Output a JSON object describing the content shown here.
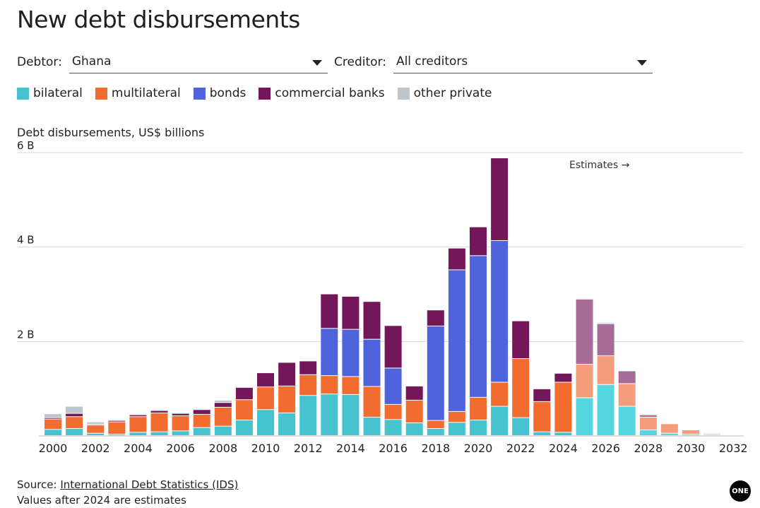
{
  "title": "New debt disbursements",
  "selectors": {
    "debtor_label": "Debtor:",
    "debtor_value": "Ghana",
    "creditor_label": "Creditor:",
    "creditor_value": "All creditors"
  },
  "legend": [
    {
      "label": "bilateral",
      "color": "#46c3cf"
    },
    {
      "label": "multilateral",
      "color": "#f26b2f"
    },
    {
      "label": "bonds",
      "color": "#4f63dd"
    },
    {
      "label": "commercial banks",
      "color": "#74175a"
    },
    {
      "label": "other private",
      "color": "#bcc5cc"
    }
  ],
  "estimate_colors": {
    "bilateral": "#56d6e0",
    "multilateral": "#f49d7a",
    "bonds": "#8b97e8",
    "commercial banks": "#a66c97",
    "other private": "#d6dbe0"
  },
  "footer": {
    "source_prefix": "Source: ",
    "source_link": "International Debt Statistics (IDS)",
    "note": "Values after 2024 are estimates"
  },
  "logo_text": "ONE",
  "chart_data": {
    "type": "bar",
    "stacked": true,
    "ylabel": "Debt disbursements, US$ billions",
    "ylim": [
      0,
      6
    ],
    "yticks": [
      {
        "value": 6,
        "label": "6 B"
      },
      {
        "value": 4,
        "label": "4 B"
      },
      {
        "value": 2,
        "label": "2 B"
      }
    ],
    "xticks": [
      "2000",
      "2002",
      "2004",
      "2006",
      "2008",
      "2010",
      "2012",
      "2014",
      "2016",
      "2018",
      "2020",
      "2022",
      "2024",
      "2026",
      "2028",
      "2030",
      "2032"
    ],
    "estimate_start": 2025,
    "annotation": "Estimates →",
    "categories": [
      2000,
      2001,
      2002,
      2003,
      2004,
      2005,
      2006,
      2007,
      2008,
      2009,
      2010,
      2011,
      2012,
      2013,
      2014,
      2015,
      2016,
      2017,
      2018,
      2019,
      2020,
      2021,
      2022,
      2023,
      2024,
      2025,
      2026,
      2027,
      2028,
      2029,
      2030,
      2031
    ],
    "series": [
      {
        "name": "bilateral",
        "values": [
          0.13,
          0.15,
          0.05,
          0.03,
          0.07,
          0.08,
          0.1,
          0.17,
          0.2,
          0.33,
          0.55,
          0.48,
          0.85,
          0.88,
          0.87,
          0.39,
          0.34,
          0.27,
          0.15,
          0.28,
          0.33,
          0.62,
          0.38,
          0.08,
          0.07,
          0.8,
          1.08,
          0.62,
          0.12,
          0.05,
          0.03,
          0.02
        ]
      },
      {
        "name": "multilateral",
        "values": [
          0.22,
          0.25,
          0.17,
          0.26,
          0.33,
          0.4,
          0.32,
          0.28,
          0.4,
          0.43,
          0.48,
          0.57,
          0.44,
          0.39,
          0.38,
          0.65,
          0.32,
          0.48,
          0.17,
          0.23,
          0.48,
          0.51,
          1.25,
          0.64,
          1.06,
          0.71,
          0.61,
          0.48,
          0.27,
          0.2,
          0.09,
          0.02
        ]
      },
      {
        "name": "bonds",
        "values": [
          0,
          0,
          0,
          0,
          0,
          0,
          0,
          0,
          0,
          0,
          0,
          0,
          0,
          1.0,
          1.0,
          1.0,
          0.77,
          0,
          2.0,
          3.0,
          3.0,
          3.0,
          0,
          0,
          0,
          0,
          0,
          0,
          0,
          0,
          0,
          0
        ]
      },
      {
        "name": "commercial banks",
        "values": [
          0.03,
          0.07,
          0.02,
          0.03,
          0.04,
          0.05,
          0.05,
          0.1,
          0.1,
          0.26,
          0.3,
          0.5,
          0.29,
          0.73,
          0.7,
          0.8,
          0.9,
          0.3,
          0.34,
          0.46,
          0.61,
          1.75,
          0.8,
          0.27,
          0.19,
          1.38,
          0.68,
          0.27,
          0.05,
          0,
          0,
          0
        ]
      },
      {
        "name": "other private",
        "values": [
          0.08,
          0.15,
          0.05,
          0.02,
          0.02,
          0.02,
          0.02,
          0.02,
          0.05,
          0,
          0,
          0,
          0,
          0,
          0,
          0,
          0,
          0,
          0,
          0,
          0,
          0,
          0,
          0,
          0,
          0.02,
          0.03,
          0,
          0.02,
          0,
          0.01,
          0.02
        ]
      }
    ]
  }
}
